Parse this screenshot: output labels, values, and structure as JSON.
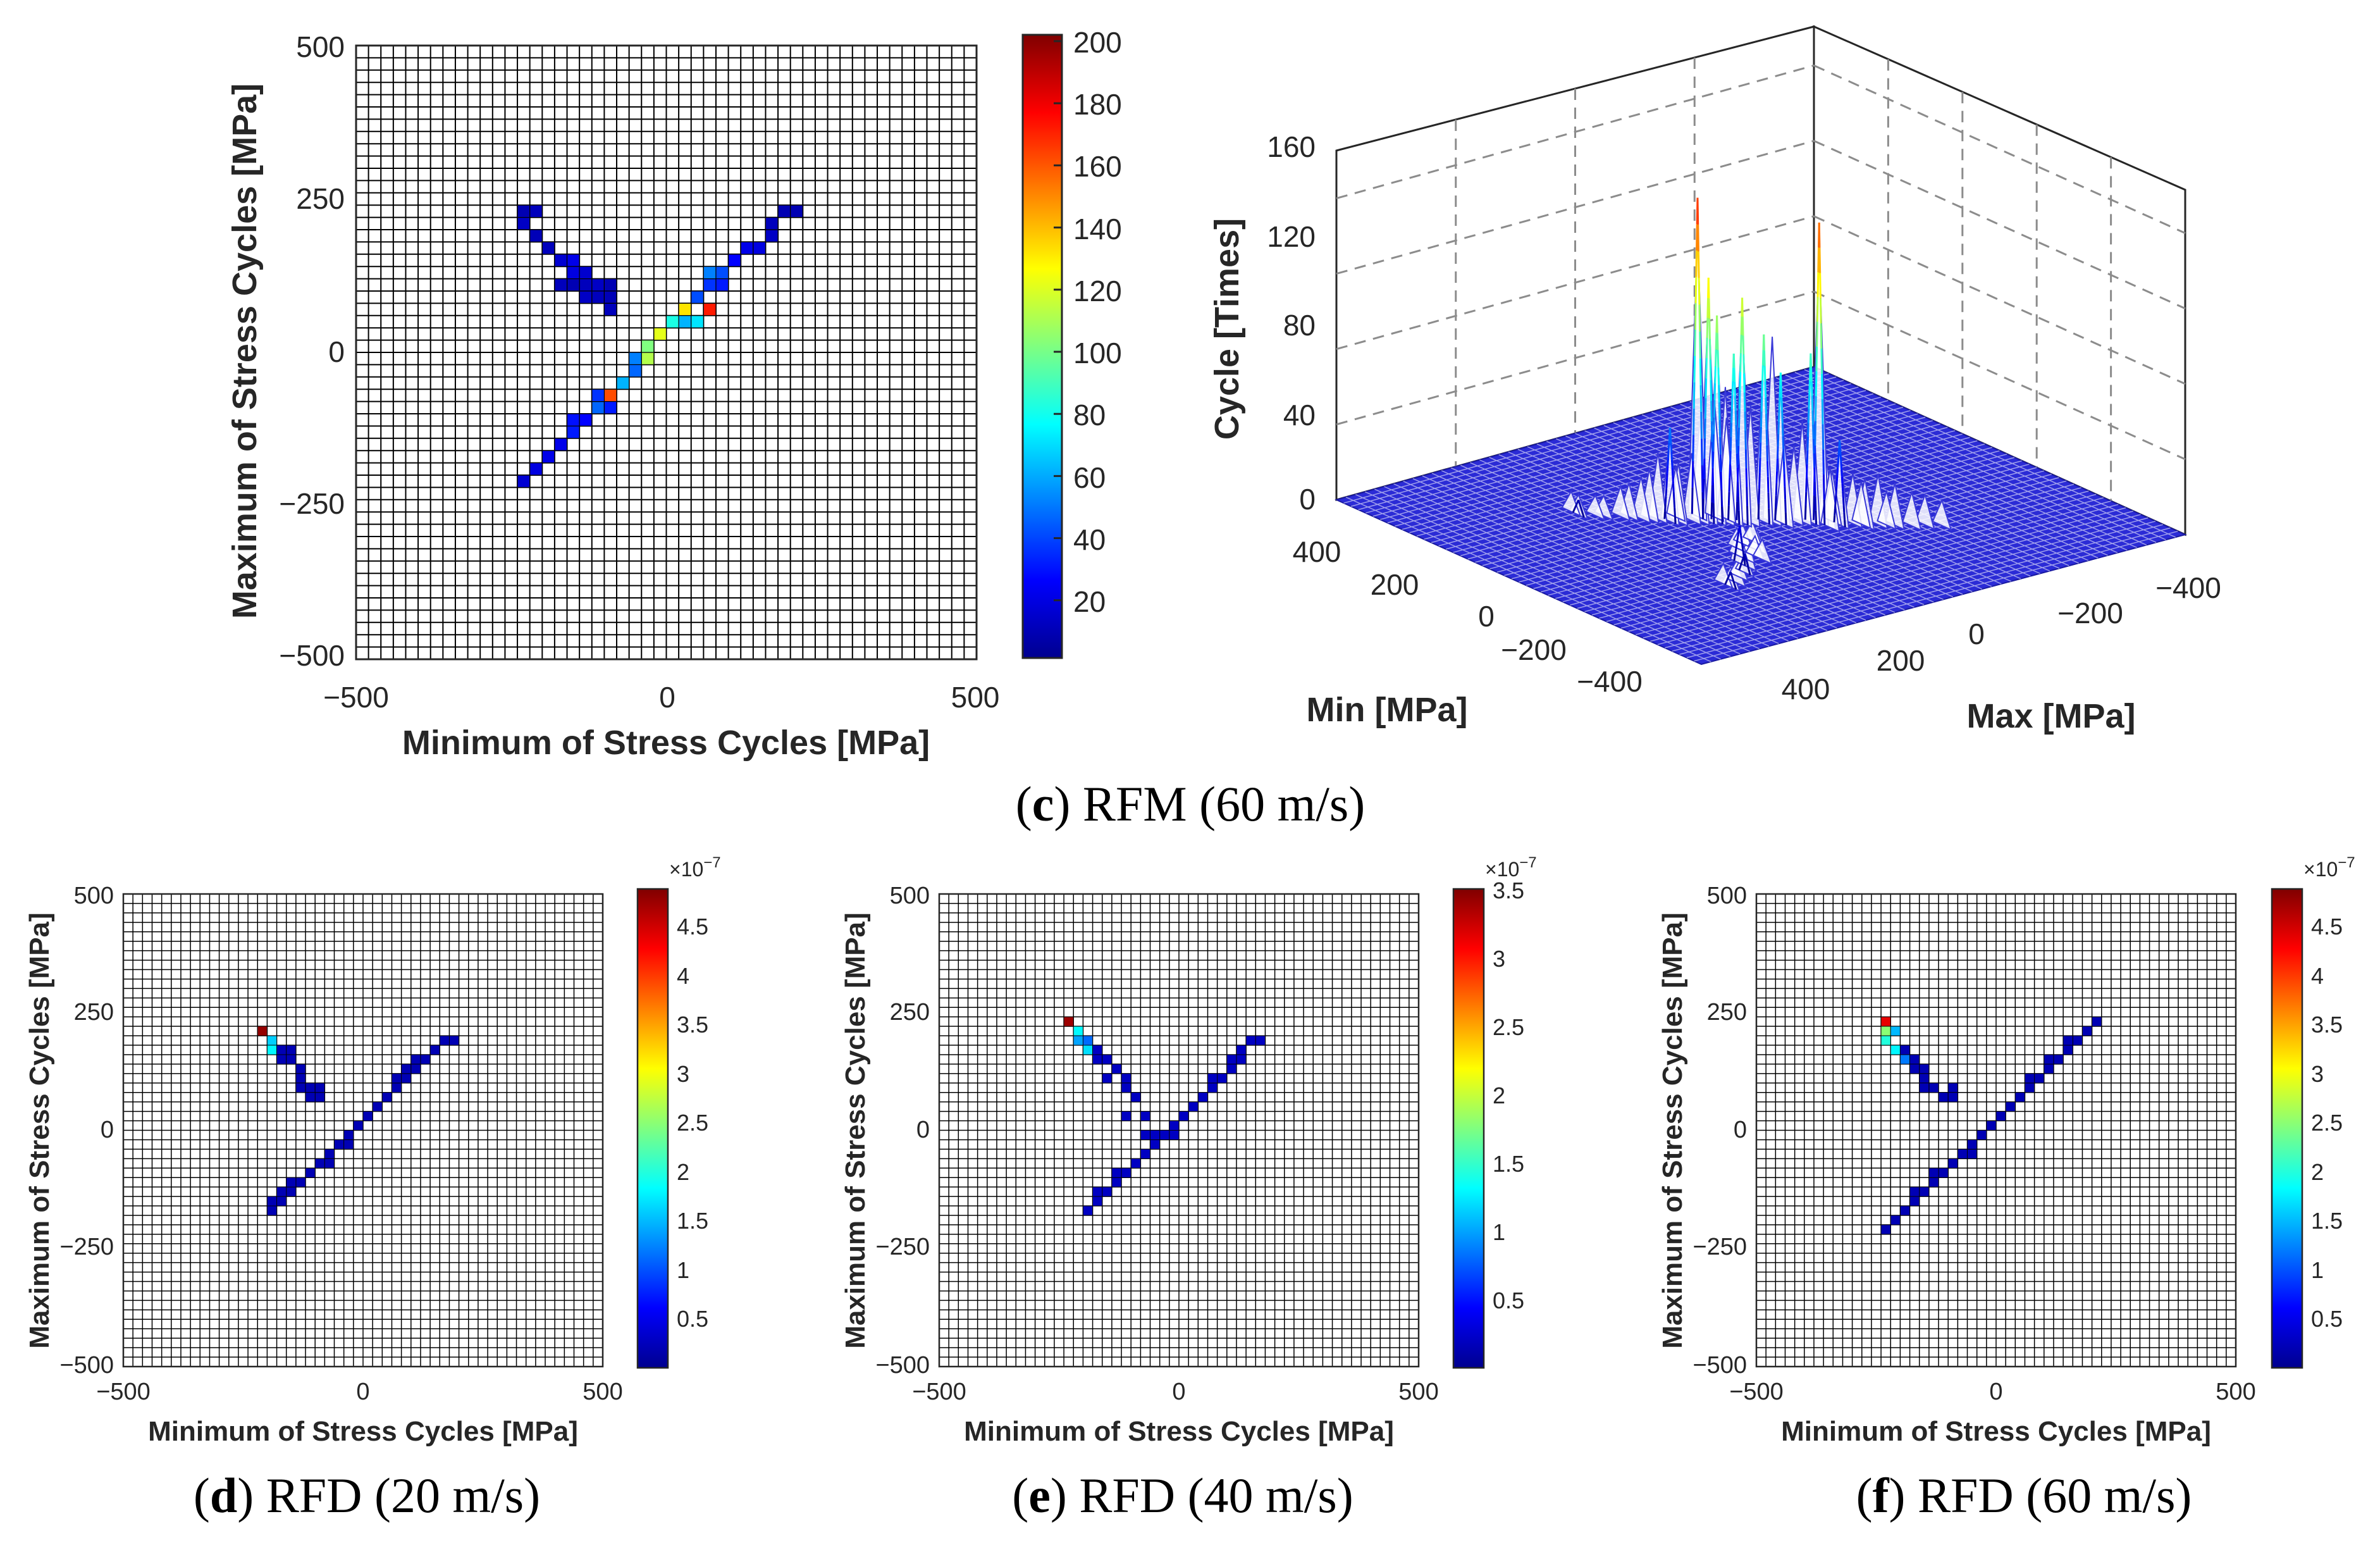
{
  "chart_data": [
    {
      "type": "heatmap",
      "id": "c2d",
      "xlabel": "Minimum of Stress Cycles [MPa]",
      "ylabel": "Maximum of Stress Cycles [MPa]",
      "xlim": [
        -500,
        500
      ],
      "ylim": [
        -500,
        500
      ],
      "xticks": [
        "−500",
        "0",
        "500"
      ],
      "yticks": [
        "500",
        "250",
        "0",
        "−250",
        "−500"
      ],
      "colorbar": {
        "min": 0,
        "max": 200,
        "ticks": [
          "200",
          "180",
          "160",
          "140",
          "120",
          "100",
          "80",
          "60",
          "40",
          "20"
        ],
        "exponent": ""
      },
      "cells": [
        [
          -240,
          240,
          8
        ],
        [
          -220,
          240,
          10
        ],
        [
          -230,
          220,
          12
        ],
        [
          -210,
          200,
          9
        ],
        [
          -200,
          180,
          10
        ],
        [
          -180,
          160,
          15
        ],
        [
          -160,
          160,
          20
        ],
        [
          -150,
          140,
          18
        ],
        [
          -130,
          140,
          14
        ],
        [
          -120,
          120,
          12
        ],
        [
          -140,
          120,
          10
        ],
        [
          -100,
          120,
          8
        ],
        [
          -110,
          100,
          10
        ],
        [
          -90,
          100,
          9
        ],
        [
          -130,
          100,
          12
        ],
        [
          -90,
          80,
          10
        ],
        [
          -150,
          120,
          8
        ],
        [
          -170,
          120,
          10
        ],
        [
          -230,
          -210,
          15
        ],
        [
          -210,
          -190,
          18
        ],
        [
          -200,
          -170,
          20
        ],
        [
          -180,
          -150,
          25
        ],
        [
          -160,
          -130,
          30
        ],
        [
          -150,
          -110,
          28
        ],
        [
          -130,
          -100,
          30
        ],
        [
          -120,
          -80,
          45
        ],
        [
          -110,
          -60,
          40
        ],
        [
          -90,
          -60,
          160
        ],
        [
          -80,
          -50,
          90
        ],
        [
          -70,
          -40,
          60
        ],
        [
          -60,
          -30,
          45
        ],
        [
          -50,
          -10,
          80
        ],
        [
          -40,
          0,
          110
        ],
        [
          -30,
          10,
          100
        ],
        [
          -20,
          30,
          70
        ],
        [
          -10,
          40,
          120
        ],
        [
          0,
          50,
          90
        ],
        [
          10,
          60,
          80
        ],
        [
          20,
          70,
          110
        ],
        [
          30,
          80,
          130
        ],
        [
          40,
          90,
          60
        ],
        [
          60,
          80,
          170
        ],
        [
          50,
          100,
          40
        ],
        [
          60,
          120,
          35
        ],
        [
          70,
          130,
          50
        ],
        [
          90,
          140,
          40
        ],
        [
          100,
          150,
          30
        ],
        [
          110,
          160,
          25
        ],
        [
          130,
          170,
          20
        ],
        [
          140,
          180,
          18
        ],
        [
          160,
          200,
          12
        ],
        [
          170,
          210,
          10
        ],
        [
          190,
          230,
          8
        ],
        [
          210,
          230,
          8
        ],
        [
          -140,
          -110,
          25
        ],
        [
          -100,
          -80,
          30
        ],
        [
          -170,
          -140,
          20
        ],
        [
          -60,
          -10,
          50
        ],
        [
          20,
          50,
          60
        ],
        [
          80,
          110,
          30
        ],
        [
          -120,
          -60,
          35
        ],
        [
          40,
          60,
          70
        ]
      ]
    },
    {
      "type": "surface",
      "id": "c3d",
      "zlabel": "Cycle [Times]",
      "xlabel": "Min [MPa]",
      "ylabel": "Max [MPa]",
      "zticks": [
        "160",
        "120",
        "80",
        "40",
        "0"
      ],
      "min_ticks": [
        "400",
        "200",
        "0",
        "−200",
        "−400"
      ],
      "max_ticks": [
        "400",
        "200",
        "0",
        "−200",
        "−400"
      ],
      "zlim": [
        0,
        200
      ],
      "peaks": [
        [
          -90,
          -60,
          160
        ],
        [
          60,
          80,
          170
        ],
        [
          -30,
          10,
          100
        ],
        [
          30,
          80,
          130
        ],
        [
          -10,
          40,
          120
        ],
        [
          20,
          70,
          110
        ],
        [
          -50,
          -10,
          80
        ],
        [
          -80,
          -50,
          90
        ],
        [
          0,
          50,
          90
        ],
        [
          -200,
          180,
          10
        ],
        [
          -160,
          160,
          20
        ],
        [
          -120,
          -80,
          45
        ],
        [
          70,
          130,
          50
        ],
        [
          -240,
          240,
          8
        ],
        [
          190,
          230,
          8
        ]
      ]
    },
    {
      "type": "heatmap",
      "id": "d",
      "xlabel": "Minimum of Stress Cycles [MPa]",
      "ylabel": "Maximum of Stress Cycles [MPa]",
      "xlim": [
        -500,
        500
      ],
      "ylim": [
        -500,
        500
      ],
      "xticks": [
        "−500",
        "0",
        "500"
      ],
      "yticks": [
        "500",
        "250",
        "0",
        "−250",
        "−500"
      ],
      "colorbar": {
        "min": 0,
        "max": 4.9,
        "ticks": [
          "4.5",
          "4",
          "3.5",
          "3",
          "2.5",
          "2",
          "1.5",
          "1",
          "0.5"
        ],
        "exponent": "×10",
        "exponent_power": "−7"
      },
      "cells": [
        [
          -210,
          210,
          4.8
        ],
        [
          -200,
          190,
          1.6
        ],
        [
          -190,
          180,
          1.8
        ],
        [
          -180,
          170,
          0.2
        ],
        [
          -160,
          170,
          0.2
        ],
        [
          -170,
          160,
          0.2
        ],
        [
          -150,
          150,
          0.2
        ],
        [
          -140,
          140,
          0.2
        ],
        [
          -130,
          120,
          0.2
        ],
        [
          -130,
          100,
          0.2
        ],
        [
          -120,
          100,
          0.2
        ],
        [
          -110,
          90,
          0.2
        ],
        [
          -100,
          80,
          0.2
        ],
        [
          -120,
          80,
          0.2
        ],
        [
          -100,
          100,
          0.2
        ],
        [
          -200,
          -170,
          0.2
        ],
        [
          -190,
          -150,
          0.2
        ],
        [
          -170,
          -140,
          0.2
        ],
        [
          -150,
          -120,
          0.2
        ],
        [
          -130,
          -100,
          0.2
        ],
        [
          -110,
          -80,
          0.2
        ],
        [
          -100,
          -70,
          0.2
        ],
        [
          -90,
          -60,
          0.2
        ],
        [
          -70,
          -40,
          0.2
        ],
        [
          -50,
          -20,
          0.2
        ],
        [
          -30,
          0,
          0.2
        ],
        [
          -10,
          20,
          0.2
        ],
        [
          10,
          40,
          0.2
        ],
        [
          30,
          60,
          0.2
        ],
        [
          50,
          80,
          0.2
        ],
        [
          70,
          100,
          0.2
        ],
        [
          80,
          120,
          0.2
        ],
        [
          100,
          130,
          0.2
        ],
        [
          110,
          150,
          0.2
        ],
        [
          130,
          160,
          0.2
        ],
        [
          140,
          170,
          0.2
        ],
        [
          160,
          190,
          0.2
        ],
        [
          180,
          190,
          0.2
        ],
        [
          -170,
          -130,
          0.2
        ],
        [
          -150,
          -100,
          0.2
        ],
        [
          60,
          110,
          0.2
        ],
        [
          90,
          140,
          0.2
        ],
        [
          120,
          150,
          0.2
        ],
        [
          -40,
          -20,
          0.2
        ],
        [
          -80,
          -60,
          0.2
        ]
      ]
    },
    {
      "type": "heatmap",
      "id": "e",
      "xlabel": "Minimum of Stress Cycles [MPa]",
      "ylabel": "Maximum of Stress Cycles [MPa]",
      "xlim": [
        -500,
        500
      ],
      "ylim": [
        -500,
        500
      ],
      "xticks": [
        "−500",
        "0",
        "500"
      ],
      "yticks": [
        "500",
        "250",
        "0",
        "−250",
        "−500"
      ],
      "colorbar": {
        "min": 0,
        "max": 3.5,
        "ticks": [
          "3.5",
          "3",
          "2.5",
          "2",
          "1.5",
          "1",
          "0.5"
        ],
        "exponent": "×10",
        "exponent_power": "−7"
      },
      "cells": [
        [
          -230,
          230,
          3.4
        ],
        [
          -220,
          210,
          1.3
        ],
        [
          -210,
          190,
          1.0
        ],
        [
          -200,
          180,
          1.2
        ],
        [
          -190,
          190,
          0.8
        ],
        [
          -180,
          170,
          0.2
        ],
        [
          -170,
          150,
          0.2
        ],
        [
          -150,
          150,
          0.2
        ],
        [
          -140,
          130,
          0.2
        ],
        [
          -150,
          110,
          0.2
        ],
        [
          -120,
          110,
          0.2
        ],
        [
          -110,
          90,
          0.2
        ],
        [
          -90,
          70,
          0.2
        ],
        [
          -110,
          40,
          0.2
        ],
        [
          -80,
          40,
          0.2
        ],
        [
          -70,
          30,
          0.2
        ],
        [
          -200,
          -170,
          0.2
        ],
        [
          -180,
          -150,
          0.2
        ],
        [
          -160,
          -130,
          0.2
        ],
        [
          -140,
          -110,
          0.2
        ],
        [
          -120,
          -90,
          0.2
        ],
        [
          -100,
          -70,
          0.2
        ],
        [
          -80,
          -50,
          0.2
        ],
        [
          -60,
          -30,
          0.2
        ],
        [
          -50,
          -10,
          0.2
        ],
        [
          -30,
          0,
          0.2
        ],
        [
          -10,
          20,
          0.2
        ],
        [
          10,
          40,
          0.2
        ],
        [
          30,
          60,
          0.2
        ],
        [
          50,
          80,
          0.2
        ],
        [
          70,
          100,
          0.2
        ],
        [
          90,
          120,
          0.2
        ],
        [
          100,
          140,
          0.2
        ],
        [
          120,
          160,
          0.2
        ],
        [
          130,
          170,
          0.2
        ],
        [
          140,
          190,
          0.2
        ],
        [
          160,
          190,
          0.2
        ],
        [
          -180,
          -130,
          0.2
        ],
        [
          -130,
          -80,
          0.2
        ],
        [
          -70,
          -10,
          0.2
        ],
        [
          60,
          110,
          0.2
        ],
        [
          100,
          160,
          0.2
        ],
        [
          -20,
          0,
          0.2
        ],
        [
          -40,
          -10,
          0.2
        ],
        [
          -60,
          0,
          0.2
        ]
      ]
    },
    {
      "type": "heatmap",
      "id": "f",
      "xlabel": "Minimum of Stress Cycles [MPa]",
      "ylabel": "Maximum of Stress Cycles [MPa]",
      "xlim": [
        -500,
        500
      ],
      "ylim": [
        -500,
        500
      ],
      "xticks": [
        "−500",
        "0",
        "500"
      ],
      "yticks": [
        "500",
        "250",
        "0",
        "−250",
        "−500"
      ],
      "colorbar": {
        "min": 0,
        "max": 4.9,
        "ticks": [
          "4.5",
          "4",
          "3.5",
          "3",
          "2.5",
          "2",
          "1.5",
          "1",
          "0.5"
        ],
        "exponent": "×10",
        "exponent_power": "−7"
      },
      "cells": [
        [
          -240,
          240,
          4.8
        ],
        [
          -230,
          240,
          4.4
        ],
        [
          -240,
          220,
          2.5
        ],
        [
          -230,
          200,
          2.0
        ],
        [
          -210,
          220,
          1.5
        ],
        [
          -220,
          180,
          1.8
        ],
        [
          -200,
          160,
          1.2
        ],
        [
          -180,
          160,
          0.2
        ],
        [
          -170,
          140,
          0.2
        ],
        [
          -160,
          140,
          0.2
        ],
        [
          -150,
          120,
          0.2
        ],
        [
          -160,
          120,
          0.2
        ],
        [
          -140,
          100,
          0.2
        ],
        [
          -130,
          100,
          0.2
        ],
        [
          -150,
          100,
          0.2
        ],
        [
          -120,
          80,
          0.2
        ],
        [
          -100,
          90,
          0.2
        ],
        [
          -90,
          80,
          0.2
        ],
        [
          -200,
          180,
          0.2
        ],
        [
          -180,
          140,
          0.2
        ],
        [
          -230,
          -210,
          0.2
        ],
        [
          -210,
          -190,
          0.2
        ],
        [
          -200,
          -170,
          0.2
        ],
        [
          -180,
          -150,
          0.2
        ],
        [
          -160,
          -130,
          0.2
        ],
        [
          -140,
          -110,
          0.2
        ],
        [
          -130,
          -90,
          0.2
        ],
        [
          -110,
          -80,
          0.2
        ],
        [
          -90,
          -60,
          0.2
        ],
        [
          -70,
          -40,
          0.2
        ],
        [
          -50,
          -20,
          0.2
        ],
        [
          -30,
          0,
          0.2
        ],
        [
          -10,
          20,
          0.2
        ],
        [
          10,
          40,
          0.2
        ],
        [
          30,
          60,
          0.2
        ],
        [
          50,
          80,
          0.2
        ],
        [
          70,
          100,
          0.2
        ],
        [
          90,
          120,
          0.2
        ],
        [
          110,
          140,
          0.2
        ],
        [
          130,
          160,
          0.2
        ],
        [
          150,
          180,
          0.2
        ],
        [
          170,
          200,
          0.2
        ],
        [
          190,
          220,
          0.2
        ],
        [
          210,
          230,
          0.2
        ],
        [
          -170,
          -120,
          0.2
        ],
        [
          -140,
          -90,
          0.2
        ],
        [
          60,
          110,
          0.2
        ],
        [
          100,
          150,
          0.2
        ],
        [
          150,
          200,
          0.2
        ],
        [
          -60,
          -40,
          0.2
        ]
      ]
    }
  ],
  "captions": {
    "c": {
      "letter": "c",
      "text": " RFM (60 m/s)",
      "open": "(",
      "close": ")"
    },
    "d": {
      "letter": "d",
      "text": " RFD (20 m/s)",
      "open": "(",
      "close": ")"
    },
    "e": {
      "letter": "e",
      "text": " RFD (40 m/s)",
      "open": "(",
      "close": ")"
    },
    "f": {
      "letter": "f",
      "text": " RFD (60 m/s)",
      "open": "(",
      "close": ")"
    }
  }
}
